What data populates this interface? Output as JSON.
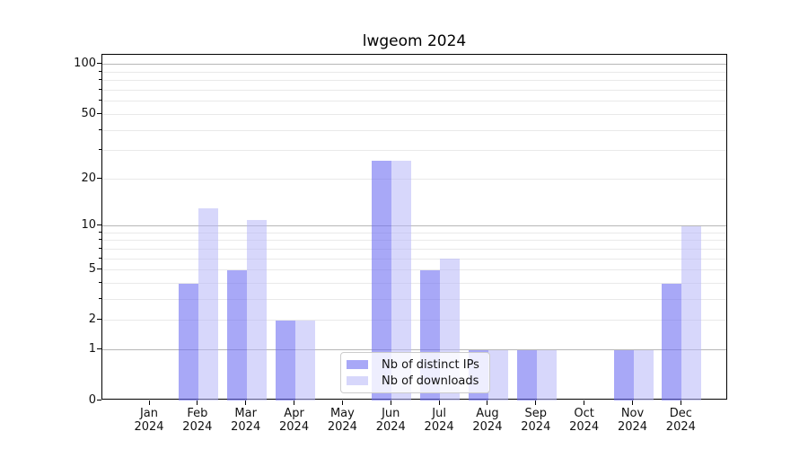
{
  "title": "lwgeom 2024",
  "chart_data": {
    "type": "bar",
    "title": "lwgeom 2024",
    "yscale": "log1p",
    "grid": true,
    "ylim": [
      0,
      115
    ],
    "categories": [
      "Jan",
      "Feb",
      "Mar",
      "Apr",
      "May",
      "Jun",
      "Jul",
      "Aug",
      "Sep",
      "Oct",
      "Nov",
      "Dec"
    ],
    "x_tick_line2": "2024",
    "series": [
      {
        "name": "Nb of distinct IPs",
        "color": "#a9a9f8",
        "color_rgba": "rgba(110,110,242,0.60)",
        "values": [
          0,
          4,
          5,
          2,
          0,
          26,
          5,
          1,
          1,
          0,
          1,
          4
        ]
      },
      {
        "name": "Nb of downloads",
        "color": "#d9d9fa",
        "color_rgba": "rgba(183,183,247,0.55)",
        "values": [
          0,
          13,
          11,
          2,
          0,
          26,
          6,
          1,
          1,
          0,
          1,
          10
        ]
      }
    ],
    "y_ticks": [
      0,
      1,
      2,
      5,
      10,
      20,
      50,
      100
    ],
    "y_major_gridlines": [
      1,
      10,
      100
    ],
    "y_minor_gridlines": [
      2,
      3,
      4,
      5,
      6,
      7,
      8,
      9,
      20,
      30,
      40,
      50,
      60,
      70,
      80,
      90
    ],
    "legend": {
      "position": "lower center",
      "entries": [
        "Nb of distinct IPs",
        "Nb of downloads"
      ]
    }
  },
  "colors": {
    "background": "#ffffff",
    "axis": "#000000",
    "grid_major": "#b7b7b7",
    "grid_minor": "#e9e9e9",
    "text": "#111111",
    "legend_border": "#cccccc",
    "legend_bg": "rgba(255,255,255,0.8)"
  }
}
